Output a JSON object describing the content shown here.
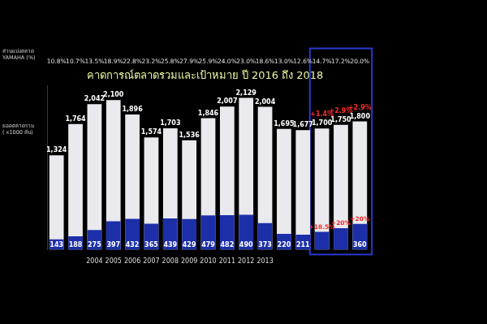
{
  "chart_data": {
    "type": "bar",
    "title": "คาดการณ์ตลาดรวมและเป้าหมาย ปี 2016 ถึง 2018",
    "y_label": [
      "ยอดตลาดรวม",
      "( x1000 คัน)"
    ],
    "categories": [
      null,
      null,
      "2004",
      "2005",
      "2006",
      "2007",
      "2008",
      "2009",
      "2010",
      "2011",
      "2012",
      "2013",
      null,
      null,
      null,
      null,
      null
    ],
    "series": [
      {
        "color": "#1c2fa8",
        "values": [
          143,
          188,
          275,
          397,
          432,
          365,
          439,
          429,
          479,
          482,
          490,
          373,
          220,
          211,
          250,
          301,
          360
        ],
        "value_labels": [
          "143",
          "188",
          "275",
          "397",
          "432",
          "365",
          "439",
          "429",
          "479",
          "482",
          "490",
          "373",
          "220",
          "211",
          null,
          null,
          "360"
        ]
      },
      {
        "color": "#e9e9ee",
        "values": [
          1324,
          1764,
          2042,
          2100,
          1896,
          1574,
          1703,
          1536,
          1846,
          2007,
          2129,
          2004,
          1695,
          1677,
          1700,
          1750,
          1800
        ],
        "value_labels": [
          "1,324",
          "1,764",
          "2,042",
          "2,100",
          "1,896",
          "1,574",
          "1,703",
          "1,536",
          "1,846",
          "2,007",
          "2,129",
          "2,004",
          "1,695",
          "1,677",
          "1,700",
          "1,750",
          "1,800"
        ]
      }
    ],
    "share": {
      "label": [
        "ส่วนแบ่งตลาด",
        "YAMAHA (%)"
      ],
      "values": [
        10.8,
        10.7,
        13.5,
        18.9,
        22.8,
        23.2,
        25.8,
        27.9,
        25.9,
        24.0,
        23.0,
        18.6,
        13.0,
        12.6,
        14.7,
        17.2,
        20.0
      ],
      "value_labels": [
        "10.8%",
        "10.7%",
        "13.5%",
        "18.9%",
        "22.8%",
        "23.2%",
        "25.8%",
        "27.9%",
        "25.9%",
        "24.0%",
        "23.0%",
        "18.6%",
        "13.0%",
        "12.6%",
        "14.7%",
        "17.2%",
        "20.0%"
      ]
    },
    "market_growth": {
      "color": "#ff2a2a",
      "values": [
        null,
        null,
        null,
        null,
        null,
        null,
        null,
        null,
        null,
        null,
        null,
        null,
        null,
        null,
        1.4,
        2.9,
        2.9
      ],
      "value_labels": [
        null,
        null,
        null,
        null,
        null,
        null,
        null,
        null,
        null,
        null,
        null,
        null,
        null,
        null,
        "+1.4%",
        "+2.9%",
        "+2.9%"
      ]
    },
    "yamaha_growth": {
      "color": "#ff2a2a",
      "values": [
        null,
        null,
        null,
        null,
        null,
        null,
        null,
        null,
        null,
        null,
        null,
        null,
        null,
        null,
        18.5,
        20,
        20
      ],
      "value_labels": [
        null,
        null,
        null,
        null,
        null,
        null,
        null,
        null,
        null,
        null,
        null,
        null,
        null,
        null,
        "+18.5%",
        "+20%",
        "+20%"
      ]
    },
    "ylim": [
      0,
      2300
    ],
    "yticks": [
      0
    ],
    "tick_labels": "x",
    "grid": false,
    "data_labels": true
  }
}
